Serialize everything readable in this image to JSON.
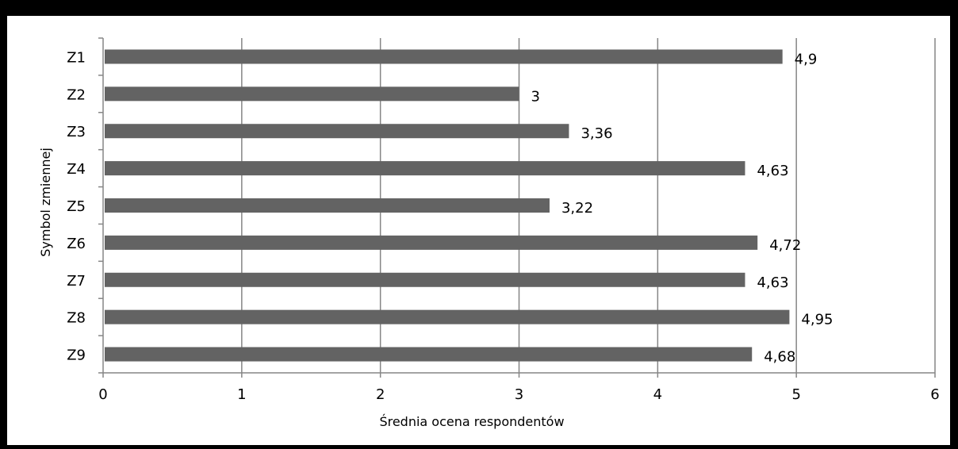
{
  "chart_data": {
    "type": "bar",
    "orientation": "horizontal",
    "categories": [
      "Z1",
      "Z2",
      "Z3",
      "Z4",
      "Z5",
      "Z6",
      "Z7",
      "Z8",
      "Z9"
    ],
    "values": [
      4.9,
      3,
      3.36,
      4.63,
      3.22,
      4.72,
      4.63,
      4.95,
      4.68
    ],
    "value_labels": [
      "4,9",
      "3",
      "3,36",
      "4,63",
      "3,22",
      "4,72",
      "4,63",
      "4,95",
      "4,68"
    ],
    "title": "",
    "xlabel": "Średnia ocena respondentów",
    "ylabel": "Symbol zmiennej",
    "xlim": [
      0,
      6
    ],
    "xticks": [
      "0",
      "1",
      "2",
      "3",
      "4",
      "5",
      "6"
    ],
    "grid": "vertical",
    "legend": "none",
    "bar_color": "#636363"
  }
}
